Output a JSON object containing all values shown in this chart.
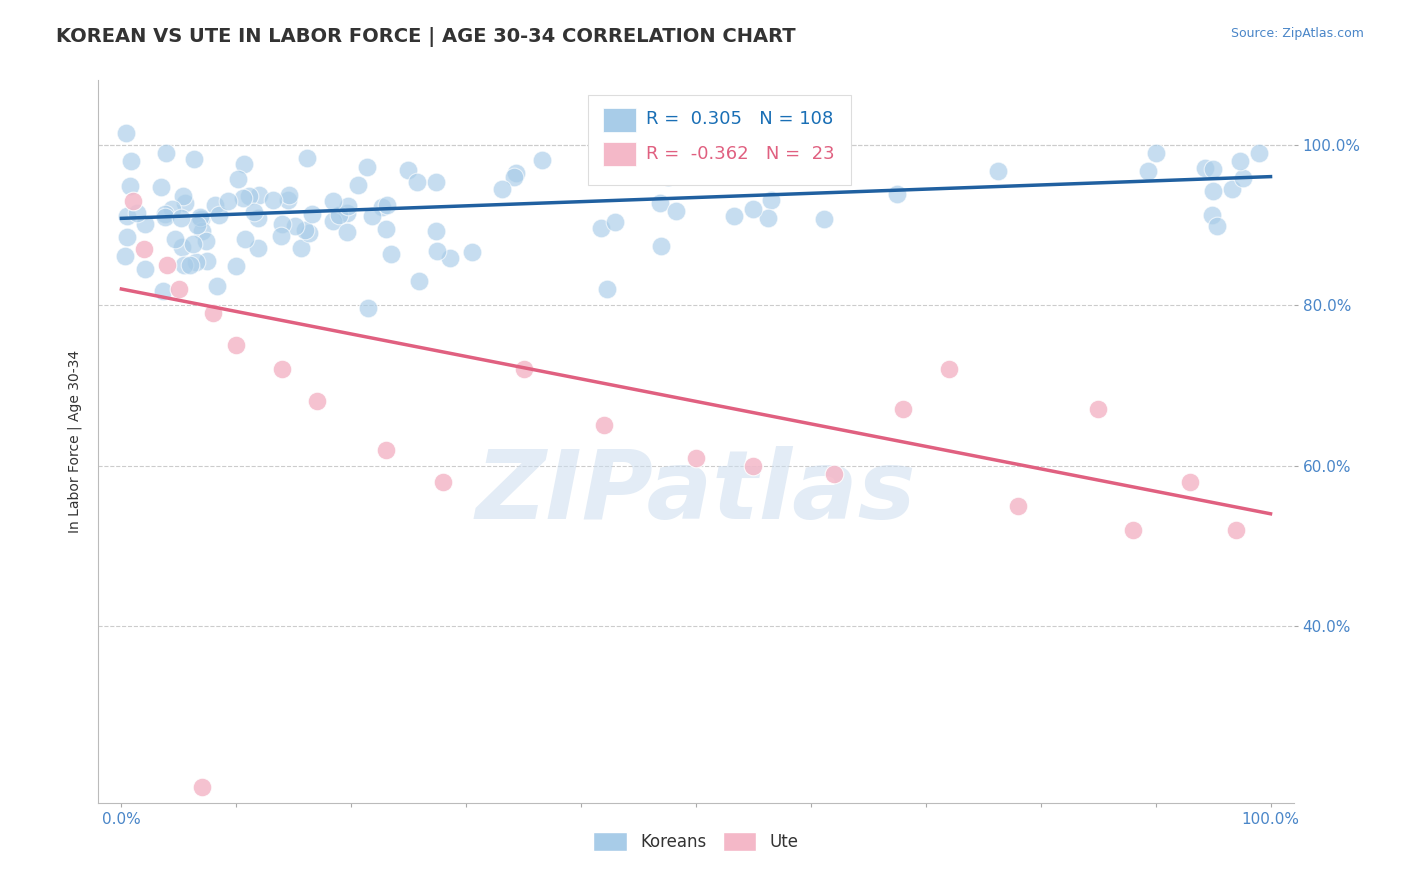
{
  "title": "KOREAN VS UTE IN LABOR FORCE | AGE 30-34 CORRELATION CHART",
  "source_text": "Source: ZipAtlas.com",
  "ylabel": "In Labor Force | Age 30-34",
  "xlim": [
    -0.02,
    1.02
  ],
  "ylim": [
    0.18,
    1.08
  ],
  "y_ticks": [
    0.4,
    0.6,
    0.8,
    1.0
  ],
  "x_ticks": [
    0.0,
    0.1,
    0.2,
    0.3,
    0.4,
    0.5,
    0.6,
    0.7,
    0.8,
    0.9,
    1.0
  ],
  "title_color": "#333333",
  "title_fontsize": 14,
  "background_color": "#ffffff",
  "grid_color": "#cccccc",
  "korean_color": "#a8cce8",
  "ute_color": "#f4b8c8",
  "korean_line_color": "#2060a0",
  "ute_line_color": "#e06080",
  "watermark_text": "ZIPatlas",
  "legend_korean_R": "0.305",
  "legend_korean_N": "108",
  "legend_ute_R": "-0.362",
  "legend_ute_N": "23",
  "korean_trend_x0": 0.0,
  "korean_trend_x1": 1.0,
  "korean_trend_y0": 0.908,
  "korean_trend_y1": 0.96,
  "ute_trend_x0": 0.0,
  "ute_trend_x1": 1.0,
  "ute_trend_y0": 0.82,
  "ute_trend_y1": 0.54
}
